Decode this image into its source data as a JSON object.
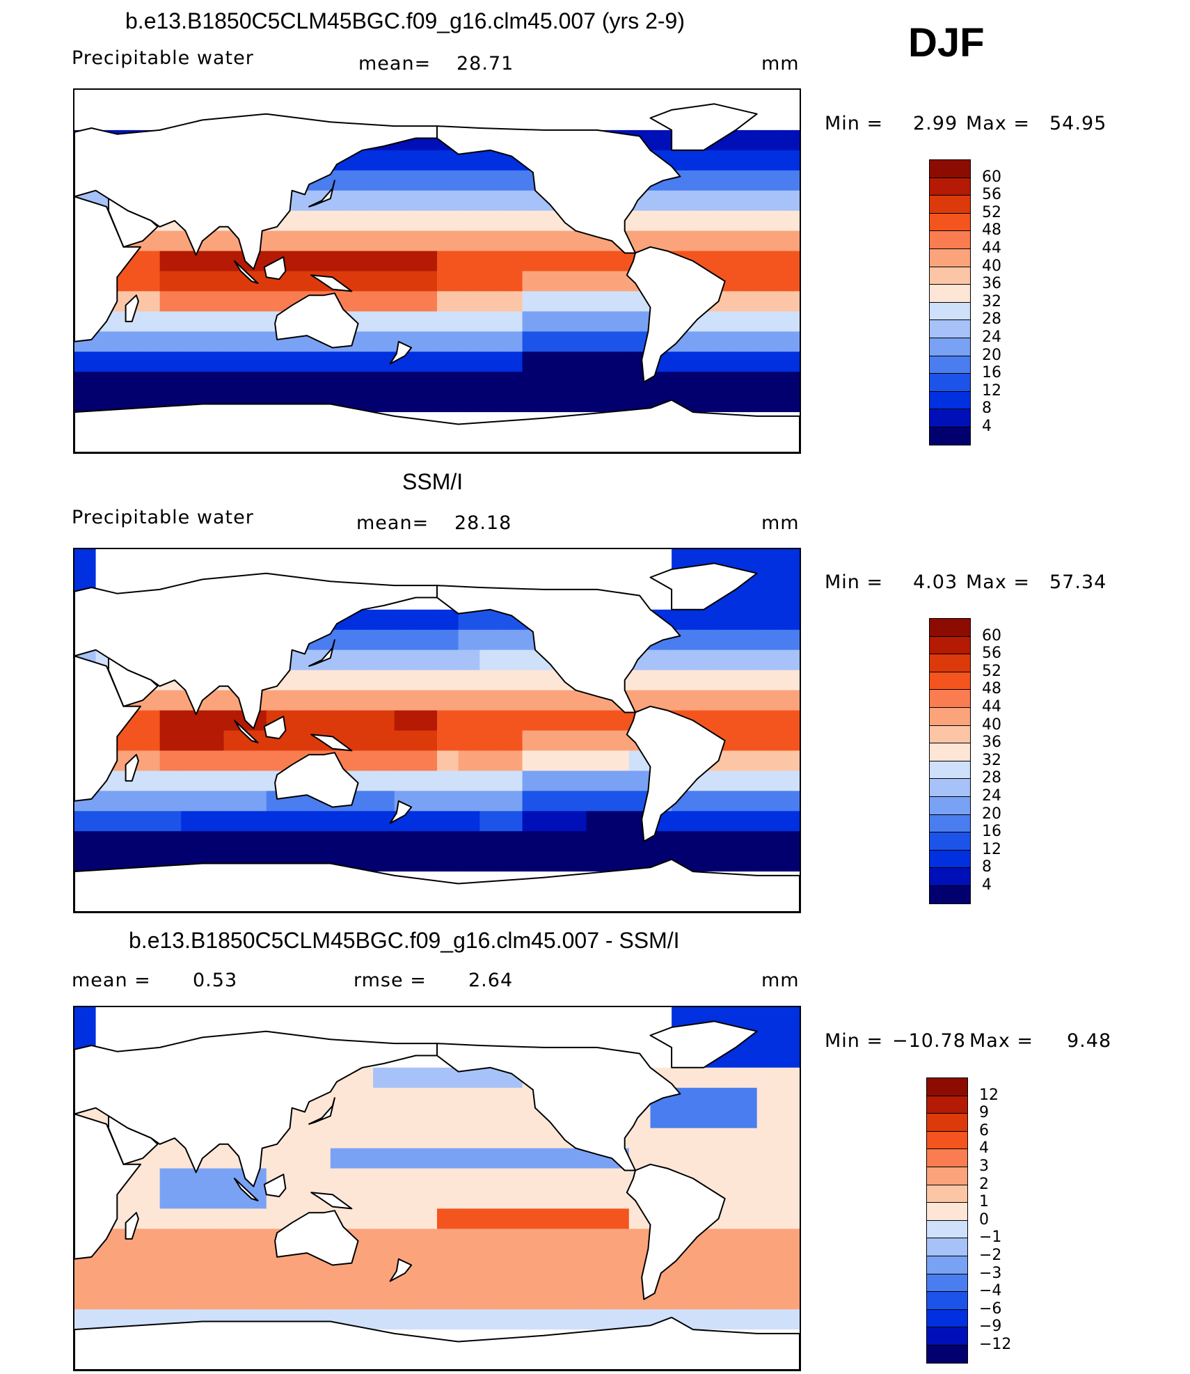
{
  "season": "DJF",
  "colors": {
    "land": "#ffffff",
    "coast": "#000000",
    "frame": "#000000"
  },
  "panels": [
    {
      "title": "b.e13.B1850C5CLM45BGC.f09_g16.clm45.007 (yrs 2-9)",
      "left_label": "Precipitable water",
      "stat_label": "mean=",
      "stat_value": "28.71",
      "units": "mm",
      "min_label": "Min =",
      "min_value": "2.99",
      "max_label": "Max =",
      "max_value": "54.95"
    },
    {
      "title": "SSM/I",
      "left_label": "Precipitable water",
      "stat_label": "mean=",
      "stat_value": "28.18",
      "units": "mm",
      "min_label": "Min =",
      "min_value": "4.03",
      "max_label": "Max =",
      "max_value": "57.34"
    },
    {
      "title": "b.e13.B1850C5CLM45BGC.f09_g16.clm45.007 - SSM/I",
      "left_label": "mean =",
      "left_value": "0.53",
      "stat_label": "rmse =",
      "stat_value": "2.64",
      "units": "mm",
      "min_label": "Min =",
      "min_value": "−10.78",
      "max_label": "Max =",
      "max_value": "9.48"
    }
  ],
  "chart_data": [
    {
      "type": "heatmap",
      "title": "b.e13.B1850C5CLM45BGC.f09_g16.clm45.007 (yrs 2-9)",
      "variable": "Precipitable water",
      "units": "mm",
      "mean": 28.71,
      "min": 2.99,
      "max": 54.95,
      "colorbar_levels": [
        4,
        8,
        12,
        16,
        20,
        24,
        28,
        32,
        36,
        40,
        44,
        48,
        52,
        56,
        60
      ],
      "colorbar_colors": [
        "#02006e",
        "#0010b8",
        "#0030e0",
        "#1c54ea",
        "#4a7df0",
        "#7aa2f4",
        "#a6c2f8",
        "#cfe0fb",
        "#fde6d6",
        "#fcc6a6",
        "#fba47c",
        "#f97d50",
        "#f4551e",
        "#dd3a0c",
        "#b41a04",
        "#8c0c02"
      ]
    },
    {
      "type": "heatmap",
      "title": "SSM/I",
      "variable": "Precipitable water",
      "units": "mm",
      "mean": 28.18,
      "min": 4.03,
      "max": 57.34,
      "colorbar_levels": [
        4,
        8,
        12,
        16,
        20,
        24,
        28,
        32,
        36,
        40,
        44,
        48,
        52,
        56,
        60
      ],
      "colorbar_colors": [
        "#02006e",
        "#0010b8",
        "#0030e0",
        "#1c54ea",
        "#4a7df0",
        "#7aa2f4",
        "#a6c2f8",
        "#cfe0fb",
        "#fde6d6",
        "#fcc6a6",
        "#fba47c",
        "#f97d50",
        "#f4551e",
        "#dd3a0c",
        "#b41a04",
        "#8c0c02"
      ]
    },
    {
      "type": "heatmap",
      "title": "b.e13.B1850C5CLM45BGC.f09_g16.clm45.007 - SSM/I",
      "units": "mm",
      "mean": 0.53,
      "rmse": 2.64,
      "min": -10.78,
      "max": 9.48,
      "colorbar_levels": [
        "−12",
        "−9",
        "−6",
        "−4",
        "−3",
        "−2",
        "−1",
        "0",
        "1",
        "2",
        "3",
        "4",
        "6",
        "9",
        "12"
      ],
      "colorbar_colors": [
        "#02006e",
        "#0010b8",
        "#0030e0",
        "#1c54ea",
        "#4a7df0",
        "#7aa2f4",
        "#a6c2f8",
        "#cfe0fb",
        "#fde6d6",
        "#fcc6a6",
        "#fba47c",
        "#f97d50",
        "#f4551e",
        "#dd3a0c",
        "#b41a04",
        "#8c0c02"
      ]
    }
  ]
}
